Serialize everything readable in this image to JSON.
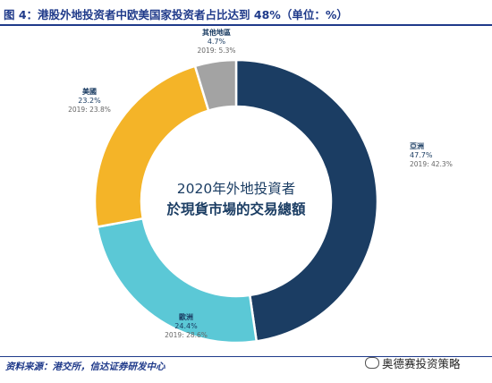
{
  "figure": {
    "title": "图 4：港股外地投资者中欧美国家投资者占比达到 48%（单位：%）",
    "source": "资料来源：港交所，信达证券研发中心",
    "watermark": "奥德赛投资策略"
  },
  "chart_data": {
    "type": "pie",
    "title": "2020年外地投資者\n於現貨市場的交易總額",
    "title_lines": [
      "2020年外地投資者",
      "於現貨市場的交易總額"
    ],
    "series": [
      {
        "name": "亞洲",
        "value": 47.7,
        "value_label": "47.7%",
        "prev_label": "2019: 42.3%",
        "prev_value": 42.3,
        "color": "#1b3d63"
      },
      {
        "name": "歐洲",
        "value": 24.4,
        "value_label": "24.4%",
        "prev_label": "2019: 28.6%",
        "prev_value": 28.6,
        "color": "#5bc8d6"
      },
      {
        "name": "美國",
        "value": 23.2,
        "value_label": "23.2%",
        "prev_label": "2019: 23.8%",
        "prev_value": 23.8,
        "color": "#f4b428"
      },
      {
        "name": "其他地區",
        "value": 4.7,
        "value_label": "4.7%",
        "prev_label": "2019: 5.3%",
        "prev_value": 5.3,
        "color": "#a3a3a3"
      }
    ]
  }
}
